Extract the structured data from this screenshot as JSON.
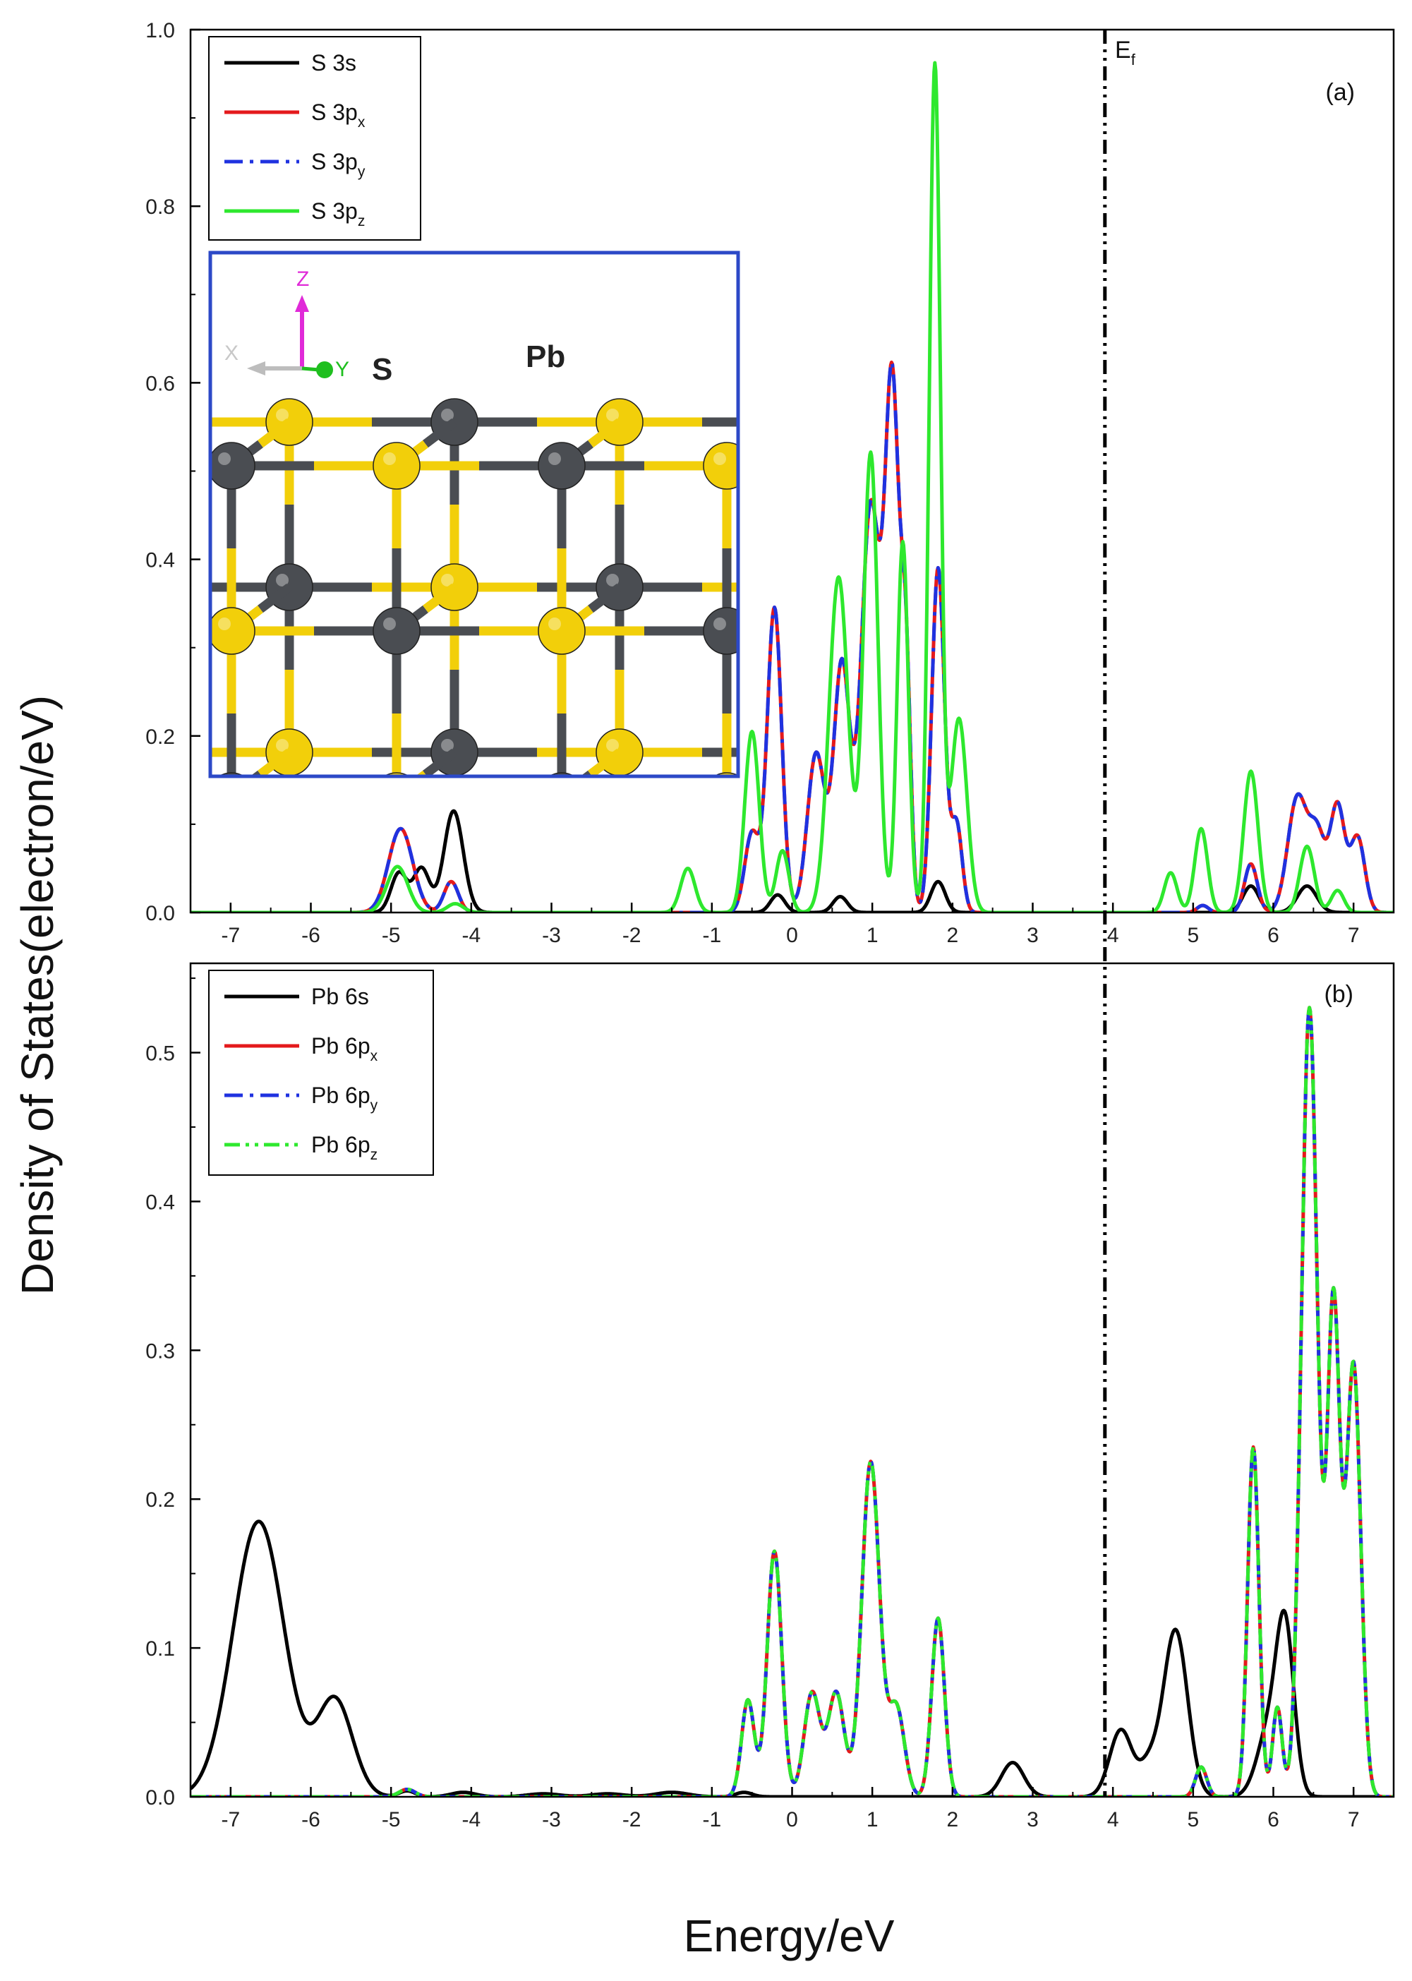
{
  "figure": {
    "ylabel": "Density of States(electron/eV)",
    "xlabel": "Energy/eV",
    "fermi_label": "E",
    "fermi_sub": "f",
    "fermi_energy": 3.9
  },
  "inset": {
    "atom_labels": [
      "S",
      "Pb"
    ],
    "axis_letters": [
      "Z",
      "Y",
      "X"
    ],
    "colors": {
      "S": "#f2cf0a",
      "Pb": "#4a4d52",
      "frame": "#2c49c7"
    }
  },
  "chart_data": [
    {
      "type": "line",
      "panel_label": "(a)",
      "xlim": [
        -7.5,
        7.5
      ],
      "ylim": [
        0,
        1.0
      ],
      "x_ticks": [
        "-7",
        "-6",
        "-5",
        "-4",
        "-3",
        "-2",
        "-1",
        "0",
        "1",
        "2",
        "3",
        "4",
        "5",
        "6",
        "7"
      ],
      "y_ticks": [
        "0.0",
        "0.2",
        "0.4",
        "0.6",
        "0.8",
        "1.0"
      ],
      "legend_position": "top-left",
      "series": [
        {
          "name": "S 3s",
          "base": "S 3s",
          "sub": "",
          "color": "#000000",
          "dash": "solid",
          "peaks": [
            [
              -4.9,
              0.045,
              0.1
            ],
            [
              -4.62,
              0.05,
              0.1
            ],
            [
              -4.22,
              0.115,
              0.12
            ],
            [
              -0.18,
              0.02,
              0.09
            ],
            [
              0.6,
              0.018,
              0.09
            ],
            [
              1.82,
              0.035,
              0.09
            ],
            [
              5.72,
              0.03,
              0.1
            ],
            [
              6.42,
              0.03,
              0.12
            ]
          ]
        },
        {
          "name": "S 3px",
          "base": "S 3p",
          "sub": "x",
          "color": "#e41a1c",
          "dash": "solid",
          "peaks": [
            [
              -4.88,
              0.095,
              0.15
            ],
            [
              -4.25,
              0.035,
              0.09
            ],
            [
              -0.5,
              0.09,
              0.09
            ],
            [
              -0.22,
              0.345,
              0.09
            ],
            [
              0.3,
              0.18,
              0.11
            ],
            [
              0.62,
              0.28,
              0.1
            ],
            [
              0.98,
              0.46,
              0.12
            ],
            [
              1.25,
              0.58,
              0.09
            ],
            [
              1.42,
              0.25,
              0.06
            ],
            [
              1.82,
              0.39,
              0.08
            ],
            [
              2.05,
              0.1,
              0.07
            ],
            [
              5.12,
              0.008,
              0.07
            ],
            [
              5.72,
              0.055,
              0.08
            ],
            [
              6.3,
              0.13,
              0.12
            ],
            [
              6.55,
              0.085,
              0.1
            ],
            [
              6.8,
              0.12,
              0.09
            ],
            [
              7.05,
              0.085,
              0.09
            ]
          ]
        },
        {
          "name": "S 3py",
          "base": "S 3p",
          "sub": "y",
          "color": "#1f32e0",
          "dash": "dashdot",
          "peaks": [
            [
              -4.88,
              0.095,
              0.15
            ],
            [
              -4.25,
              0.035,
              0.09
            ],
            [
              -0.5,
              0.09,
              0.09
            ],
            [
              -0.22,
              0.345,
              0.09
            ],
            [
              0.3,
              0.18,
              0.11
            ],
            [
              0.62,
              0.28,
              0.1
            ],
            [
              0.98,
              0.46,
              0.12
            ],
            [
              1.25,
              0.58,
              0.09
            ],
            [
              1.42,
              0.25,
              0.06
            ],
            [
              1.82,
              0.39,
              0.08
            ],
            [
              2.05,
              0.1,
              0.07
            ],
            [
              5.12,
              0.008,
              0.07
            ],
            [
              5.72,
              0.055,
              0.08
            ],
            [
              6.3,
              0.13,
              0.12
            ],
            [
              6.55,
              0.085,
              0.1
            ],
            [
              6.8,
              0.12,
              0.09
            ],
            [
              7.05,
              0.085,
              0.09
            ]
          ]
        },
        {
          "name": "S 3pz",
          "base": "S 3p",
          "sub": "z",
          "color": "#2ee82e",
          "dash": "solid",
          "peaks": [
            [
              -4.92,
              0.052,
              0.13
            ],
            [
              -4.2,
              0.01,
              0.1
            ],
            [
              -1.3,
              0.05,
              0.09
            ],
            [
              -0.5,
              0.205,
              0.09
            ],
            [
              -0.12,
              0.07,
              0.08
            ],
            [
              0.58,
              0.38,
              0.12
            ],
            [
              0.98,
              0.52,
              0.09
            ],
            [
              1.38,
              0.42,
              0.07
            ],
            [
              1.78,
              0.96,
              0.07
            ],
            [
              2.08,
              0.22,
              0.1
            ],
            [
              4.72,
              0.045,
              0.08
            ],
            [
              5.1,
              0.095,
              0.08
            ],
            [
              5.72,
              0.16,
              0.09
            ],
            [
              6.42,
              0.075,
              0.09
            ],
            [
              6.8,
              0.025,
              0.08
            ]
          ]
        }
      ]
    },
    {
      "type": "line",
      "panel_label": "(b)",
      "xlim": [
        -7.5,
        7.5
      ],
      "ylim": [
        0,
        0.56
      ],
      "x_ticks": [
        "-7",
        "-6",
        "-5",
        "-4",
        "-3",
        "-2",
        "-1",
        "0",
        "1",
        "2",
        "3",
        "4",
        "5",
        "6",
        "7"
      ],
      "y_ticks": [
        "0.0",
        "0.1",
        "0.2",
        "0.3",
        "0.4",
        "0.5"
      ],
      "legend_position": "top-left",
      "series": [
        {
          "name": "Pb 6s",
          "base": "Pb 6s",
          "sub": "",
          "color": "#000000",
          "dash": "solid",
          "peaks": [
            [
              -6.65,
              0.185,
              0.32
            ],
            [
              -5.7,
              0.065,
              0.22
            ],
            [
              -4.8,
              0.004,
              0.1
            ],
            [
              -4.1,
              0.003,
              0.15
            ],
            [
              -3.1,
              0.002,
              0.2
            ],
            [
              -2.3,
              0.002,
              0.2
            ],
            [
              -1.5,
              0.003,
              0.2
            ],
            [
              -0.6,
              0.003,
              0.1
            ],
            [
              2.75,
              0.023,
              0.14
            ],
            [
              4.1,
              0.045,
              0.14
            ],
            [
              4.45,
              0.02,
              0.12
            ],
            [
              4.78,
              0.112,
              0.15
            ],
            [
              5.95,
              0.045,
              0.15
            ],
            [
              6.15,
              0.105,
              0.11
            ]
          ]
        },
        {
          "name": "Pb 6px",
          "base": "Pb 6p",
          "sub": "x",
          "color": "#e41a1c",
          "dash": "solid",
          "peaks": [
            [
              -4.8,
              0.005,
              0.1
            ],
            [
              -0.55,
              0.065,
              0.08
            ],
            [
              -0.22,
              0.165,
              0.09
            ],
            [
              0.25,
              0.07,
              0.1
            ],
            [
              0.55,
              0.07,
              0.1
            ],
            [
              0.98,
              0.225,
              0.11
            ],
            [
              1.3,
              0.06,
              0.1
            ],
            [
              1.82,
              0.12,
              0.08
            ],
            [
              5.1,
              0.02,
              0.07
            ],
            [
              5.75,
              0.235,
              0.07
            ],
            [
              6.05,
              0.06,
              0.06
            ],
            [
              6.45,
              0.53,
              0.1
            ],
            [
              6.75,
              0.33,
              0.08
            ],
            [
              7.0,
              0.29,
              0.09
            ]
          ]
        },
        {
          "name": "Pb 6py",
          "base": "Pb 6p",
          "sub": "y",
          "color": "#1f32e0",
          "dash": "dashdot",
          "peaks": [
            [
              -4.8,
              0.005,
              0.1
            ],
            [
              -0.55,
              0.065,
              0.08
            ],
            [
              -0.22,
              0.165,
              0.09
            ],
            [
              0.25,
              0.07,
              0.1
            ],
            [
              0.55,
              0.07,
              0.1
            ],
            [
              0.98,
              0.225,
              0.11
            ],
            [
              1.3,
              0.06,
              0.1
            ],
            [
              1.82,
              0.12,
              0.08
            ],
            [
              5.1,
              0.02,
              0.07
            ],
            [
              5.75,
              0.235,
              0.07
            ],
            [
              6.05,
              0.06,
              0.06
            ],
            [
              6.45,
              0.53,
              0.1
            ],
            [
              6.75,
              0.33,
              0.08
            ],
            [
              7.0,
              0.29,
              0.09
            ]
          ]
        },
        {
          "name": "Pb 6pz",
          "base": "Pb 6p",
          "sub": "z",
          "color": "#2ee82e",
          "dash": "dashdotdot",
          "peaks": [
            [
              -4.8,
              0.005,
              0.1
            ],
            [
              -0.55,
              0.065,
              0.08
            ],
            [
              -0.22,
              0.165,
              0.09
            ],
            [
              0.25,
              0.07,
              0.1
            ],
            [
              0.55,
              0.07,
              0.1
            ],
            [
              0.98,
              0.225,
              0.11
            ],
            [
              1.3,
              0.06,
              0.1
            ],
            [
              1.82,
              0.12,
              0.08
            ],
            [
              5.1,
              0.02,
              0.07
            ],
            [
              5.75,
              0.235,
              0.07
            ],
            [
              6.05,
              0.06,
              0.06
            ],
            [
              6.45,
              0.53,
              0.1
            ],
            [
              6.75,
              0.33,
              0.08
            ],
            [
              7.0,
              0.29,
              0.09
            ]
          ]
        }
      ]
    }
  ]
}
